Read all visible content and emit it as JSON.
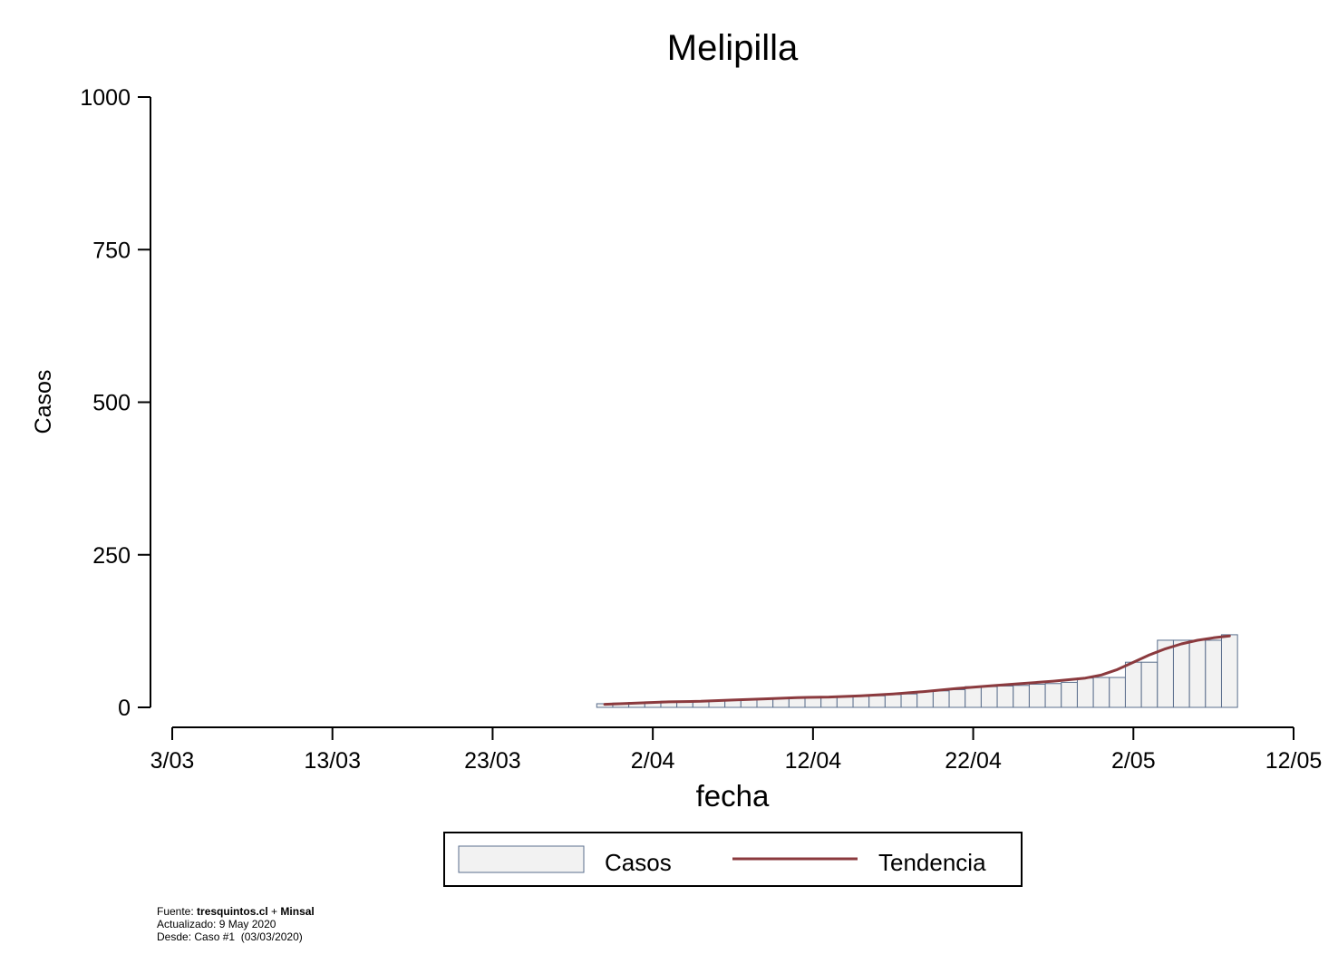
{
  "chart_data": {
    "type": "bar",
    "title": "Melipilla",
    "xlabel": "fecha",
    "ylabel": "Casos",
    "ylim": [
      0,
      1000
    ],
    "yticks": [
      0,
      250,
      500,
      750,
      1000
    ],
    "xticks": [
      "3/03",
      "13/03",
      "23/03",
      "2/04",
      "12/04",
      "22/04",
      "2/05",
      "12/05"
    ],
    "x_range": [
      "2020-03-03",
      "2020-05-12"
    ],
    "grid": false,
    "legend_placement": "bottom",
    "series": [
      {
        "name": "Casos",
        "kind": "bar",
        "color": "#f2f2f2",
        "edge_color": "#5a6e8c",
        "dates": [
          "2020-03-30",
          "2020-03-31",
          "2020-04-01",
          "2020-04-02",
          "2020-04-03",
          "2020-04-04",
          "2020-04-05",
          "2020-04-06",
          "2020-04-07",
          "2020-04-08",
          "2020-04-09",
          "2020-04-10",
          "2020-04-11",
          "2020-04-12",
          "2020-04-13",
          "2020-04-14",
          "2020-04-15",
          "2020-04-16",
          "2020-04-17",
          "2020-04-18",
          "2020-04-19",
          "2020-04-20",
          "2020-04-21",
          "2020-04-22",
          "2020-04-23",
          "2020-04-24",
          "2020-04-25",
          "2020-04-26",
          "2020-04-27",
          "2020-04-28",
          "2020-04-29",
          "2020-04-30",
          "2020-05-01",
          "2020-05-02",
          "2020-05-03",
          "2020-05-04",
          "2020-05-05",
          "2020-05-06",
          "2020-05-07",
          "2020-05-08"
        ],
        "values": [
          6,
          7,
          8,
          9,
          10,
          10,
          11,
          11,
          12,
          13,
          14,
          15,
          15,
          16,
          17,
          17,
          18,
          19,
          21,
          22,
          26,
          27,
          29,
          34,
          34,
          35,
          36,
          38,
          39,
          41,
          48,
          49,
          49,
          74,
          74,
          110,
          110,
          110,
          110,
          119
        ]
      },
      {
        "name": "Tendencia",
        "kind": "line",
        "color": "#8b3a3e",
        "dates": [
          "2020-03-30",
          "2020-04-01",
          "2020-04-03",
          "2020-04-05",
          "2020-04-07",
          "2020-04-09",
          "2020-04-11",
          "2020-04-13",
          "2020-04-15",
          "2020-04-17",
          "2020-04-19",
          "2020-04-21",
          "2020-04-23",
          "2020-04-25",
          "2020-04-27",
          "2020-04-29",
          "2020-04-30",
          "2020-05-01",
          "2020-05-02",
          "2020-05-03",
          "2020-05-04",
          "2020-05-05",
          "2020-05-06",
          "2020-05-07",
          "2020-05-08"
        ],
        "values": [
          5,
          7,
          9,
          10,
          12,
          14,
          16,
          17,
          19,
          22,
          26,
          31,
          35,
          39,
          43,
          48,
          53,
          62,
          74,
          86,
          96,
          104,
          110,
          114,
          117
        ]
      }
    ],
    "legend": [
      "Casos",
      "Tendencia"
    ]
  },
  "footer": {
    "source_label": "Fuente: ",
    "source_site": "tresquintos.cl",
    "source_sep": " + ",
    "source_org": "Minsal",
    "updated": "Actualizado: 9 May 2020",
    "since": "Desde: Caso #1  (03/03/2020)"
  }
}
